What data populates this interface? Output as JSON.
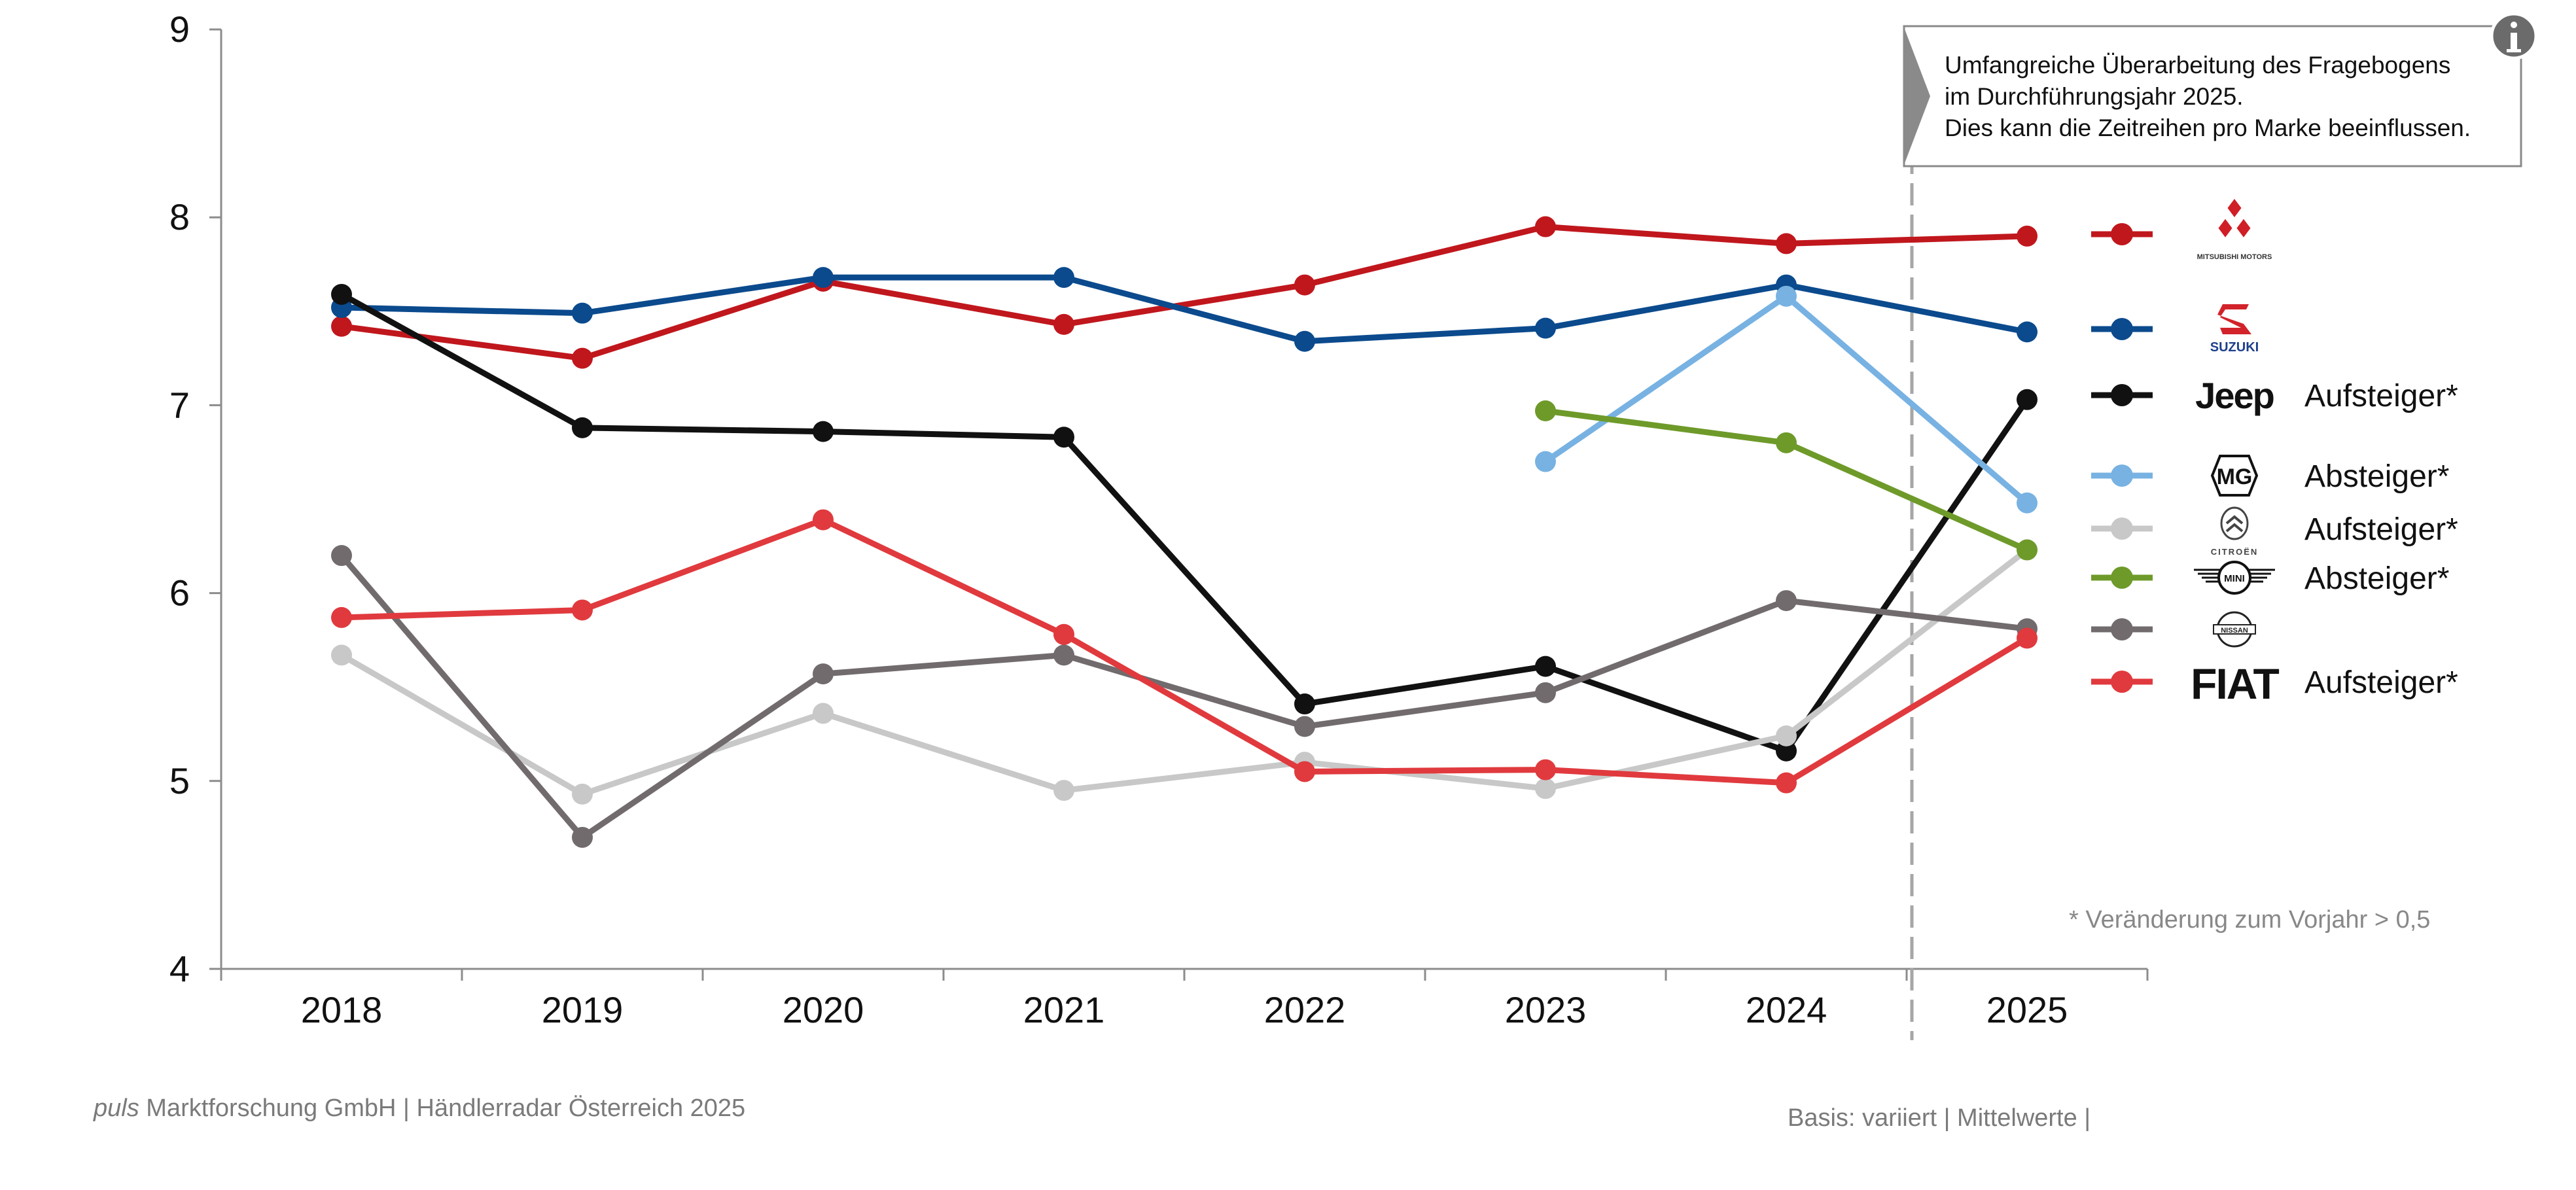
{
  "chart_data": {
    "type": "line",
    "title": "",
    "xlabel": "",
    "ylabel": "",
    "categories": [
      "2018",
      "2019",
      "2020",
      "2021",
      "2022",
      "2023",
      "2024",
      "2025"
    ],
    "ylim": [
      4,
      9
    ],
    "yticks": [
      "4",
      "5",
      "6",
      "7",
      "8",
      "9"
    ],
    "grid": false,
    "legend_position": "right",
    "series": [
      {
        "name": "Mitsubishi",
        "brand_label": "MITSUBISHI MOTORS",
        "color": "#c0171d",
        "status": "",
        "values": [
          7.42,
          7.25,
          7.66,
          7.43,
          7.64,
          7.95,
          7.86,
          7.9
        ]
      },
      {
        "name": "Suzuki",
        "brand_label": "SUZUKI",
        "color": "#0b4a8d",
        "status": "",
        "values": [
          7.52,
          7.49,
          7.68,
          7.68,
          7.34,
          7.41,
          7.64,
          7.39
        ]
      },
      {
        "name": "Jeep",
        "brand_label": "Jeep",
        "color": "#111111",
        "status": "Aufsteiger*",
        "values": [
          7.59,
          6.88,
          6.86,
          6.83,
          5.41,
          5.61,
          5.16,
          7.03
        ]
      },
      {
        "name": "MG",
        "brand_label": "MG",
        "color": "#77b2e2",
        "status": "Absteiger*",
        "values": [
          null,
          null,
          null,
          null,
          null,
          6.7,
          7.58,
          6.48
        ]
      },
      {
        "name": "Citroën",
        "brand_label": "CITROËN",
        "color": "#c8c8c8",
        "status": "Aufsteiger*",
        "values": [
          5.67,
          4.93,
          5.36,
          4.95,
          5.1,
          4.96,
          5.24,
          6.23
        ]
      },
      {
        "name": "Mini",
        "brand_label": "MINI",
        "color": "#6e9a2a",
        "status": "Absteiger*",
        "values": [
          null,
          null,
          null,
          null,
          null,
          6.97,
          6.8,
          6.23
        ]
      },
      {
        "name": "Nissan",
        "brand_label": "NISSAN",
        "color": "#716b6d",
        "status": "",
        "values": [
          6.2,
          4.7,
          5.57,
          5.67,
          5.29,
          5.47,
          5.96,
          5.81
        ]
      },
      {
        "name": "Fiat",
        "brand_label": "FIAT",
        "color": "#e03a3e",
        "status": "Aufsteiger*",
        "values": [
          5.87,
          5.91,
          6.39,
          5.78,
          5.05,
          5.06,
          4.99,
          5.76
        ]
      }
    ],
    "annotation": {
      "lines": [
        "Umfangreiche Überarbeitung des Fragebogens",
        "im Durchführungsjahr 2025.",
        "Dies kann die Zeitreihen pro Marke beeinflussen."
      ],
      "icon": "info-icon"
    },
    "footnote": "* Veränderung zum Vorjahr > 0,5"
  },
  "footer": {
    "source_italic": "puls",
    "source_rest": " Marktforschung GmbH | Händlerradar Österreich 2025",
    "basis": "Basis: variiert | Mittelwerte |"
  }
}
